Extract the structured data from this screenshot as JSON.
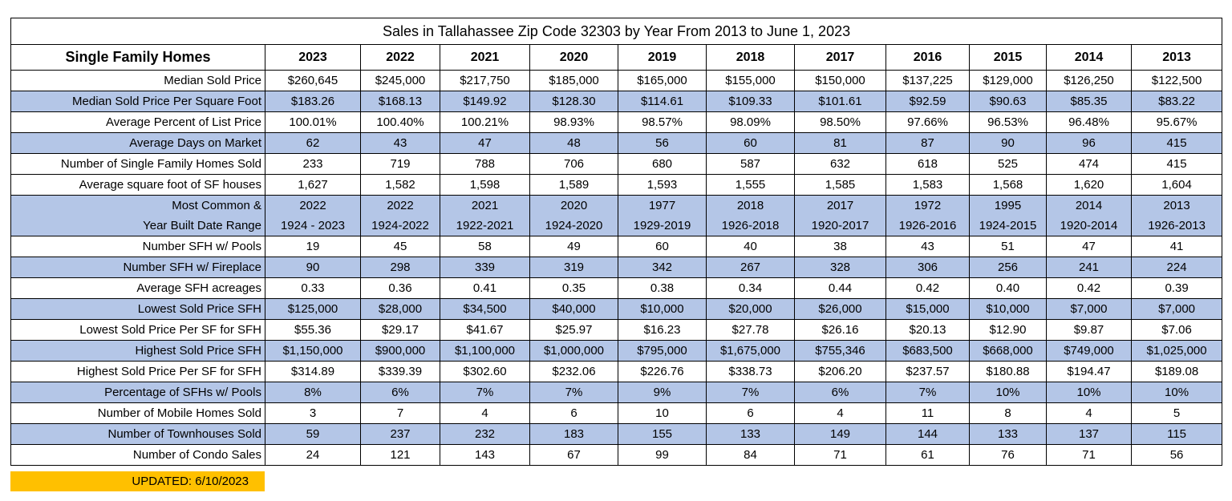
{
  "title": "Sales in Tallahassee Zip Code 32303 by Year From 2013 to June 1, 2023",
  "table": {
    "header": [
      "Single Family Homes",
      "2023",
      "2022",
      "2021",
      "2020",
      "2019",
      "2018",
      "2017",
      "2016",
      "2015",
      "2014",
      "2013"
    ],
    "rows": [
      [
        "Median Sold Price",
        "$260,645",
        "$245,000",
        "$217,750",
        "$185,000",
        "$165,000",
        "$155,000",
        "$150,000",
        "$137,225",
        "$129,000",
        "$126,250",
        "$122,500"
      ],
      [
        "Median Sold Price Per Square Foot",
        "$183.26",
        "$168.13",
        "$149.92",
        "$128.30",
        "$114.61",
        "$109.33",
        "$101.61",
        "$92.59",
        "$90.63",
        "$85.35",
        "$83.22"
      ],
      [
        "Average Percent of List Price",
        "100.01%",
        "100.40%",
        "100.21%",
        "98.93%",
        "98.57%",
        "98.09%",
        "98.50%",
        "97.66%",
        "96.53%",
        "96.48%",
        "95.67%"
      ],
      [
        "Average Days on Market",
        "62",
        "43",
        "47",
        "48",
        "56",
        "60",
        "81",
        "87",
        "90",
        "96",
        "415"
      ],
      [
        "Number of Single Family Homes Sold",
        "233",
        "719",
        "788",
        "706",
        "680",
        "587",
        "632",
        "618",
        "525",
        "474",
        "415"
      ],
      [
        "Average square foot of SF houses",
        "1,627",
        "1,582",
        "1,598",
        "1,589",
        "1,593",
        "1,555",
        "1,585",
        "1,583",
        "1,568",
        "1,620",
        "1,604"
      ],
      [
        "Most Common &",
        "2022",
        "2022",
        "2021",
        "2020",
        "1977",
        "2018",
        "2017",
        "1972",
        "1995",
        "2014",
        "2013"
      ],
      [
        "Year Built Date Range",
        "1924 - 2023",
        "1924-2022",
        "1922-2021",
        "1924-2020",
        "1929-2019",
        "1926-2018",
        "1920-2017",
        "1926-2016",
        "1924-2015",
        "1920-2014",
        "1926-2013"
      ],
      [
        "Number SFH w/ Pools",
        "19",
        "45",
        "58",
        "49",
        "60",
        "40",
        "38",
        "43",
        "51",
        "47",
        "41"
      ],
      [
        "Number SFH w/ Fireplace",
        "90",
        "298",
        "339",
        "319",
        "342",
        "267",
        "328",
        "306",
        "256",
        "241",
        "224"
      ],
      [
        "Average SFH acreages",
        "0.33",
        "0.36",
        "0.41",
        "0.35",
        "0.38",
        "0.34",
        "0.44",
        "0.42",
        "0.40",
        "0.42",
        "0.39"
      ],
      [
        "Lowest Sold Price SFH",
        "$125,000",
        "$28,000",
        "$34,500",
        "$40,000",
        "$10,000",
        "$20,000",
        "$26,000",
        "$15,000",
        "$10,000",
        "$7,000",
        "$7,000"
      ],
      [
        "Lowest Sold Price Per SF for SFH",
        "$55.36",
        "$29.17",
        "$41.67",
        "$25.97",
        "$16.23",
        "$27.78",
        "$26.16",
        "$20.13",
        "$12.90",
        "$9.87",
        "$7.06"
      ],
      [
        "Highest Sold Price SFH",
        "$1,150,000",
        "$900,000",
        "$1,100,000",
        "$1,000,000",
        "$795,000",
        "$1,675,000",
        "$755,346",
        "$683,500",
        "$668,000",
        "$749,000",
        "$1,025,000"
      ],
      [
        "Highest Sold Price Per SF for SFH",
        "$314.89",
        "$339.39",
        "$302.60",
        "$232.06",
        "$226.76",
        "$338.73",
        "$206.20",
        "$237.57",
        "$180.88",
        "$194.47",
        "$189.08"
      ],
      [
        "Percentage of SFHs w/ Pools",
        "8%",
        "6%",
        "7%",
        "7%",
        "9%",
        "7%",
        "6%",
        "7%",
        "10%",
        "10%",
        "10%"
      ],
      [
        "Number of Mobile Homes Sold",
        "3",
        "7",
        "4",
        "6",
        "10",
        "6",
        "4",
        "11",
        "8",
        "4",
        "5"
      ],
      [
        "Number of Townhouses Sold",
        "59",
        "237",
        "232",
        "183",
        "155",
        "133",
        "149",
        "144",
        "133",
        "137",
        "115"
      ],
      [
        "Number of Condo Sales",
        "24",
        "121",
        "143",
        "67",
        "99",
        "84",
        "71",
        "61",
        "76",
        "71",
        "56"
      ]
    ]
  },
  "footer": "UPDATED: 6/10/2023"
}
